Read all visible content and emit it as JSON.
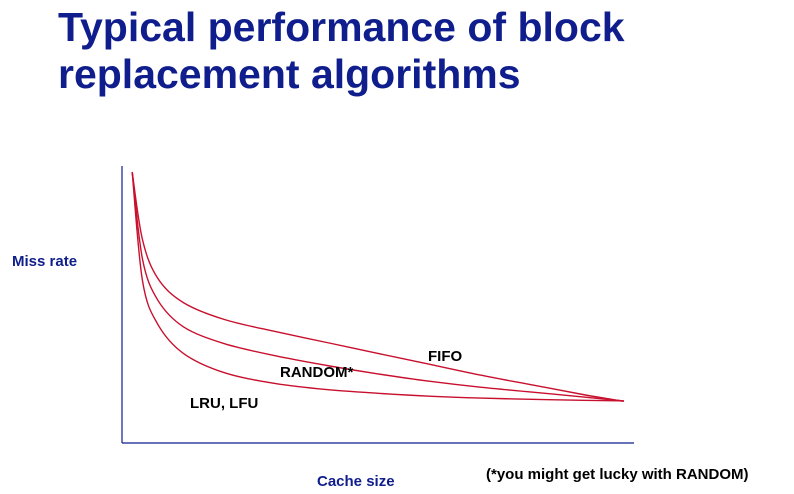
{
  "slide": {
    "title_line1": "Typical performance of block",
    "title_line2": "replacement algorithms",
    "footnote": "(*you might get lucky with RANDOM)"
  },
  "colors": {
    "title": "#0f1e8c",
    "axis": "#0f1e8c",
    "curve": "#c8102e",
    "label": "#000000"
  },
  "chart_data": {
    "type": "line",
    "title": "",
    "xlabel": "Cache size",
    "ylabel": "Miss rate",
    "xticks": [],
    "yticks": [],
    "grid": false,
    "legend": "none",
    "x_domain": [
      0,
      1
    ],
    "y_domain": [
      0,
      1
    ],
    "series": [
      {
        "name": "FIFO",
        "points": [
          [
            0.02,
            1.0
          ],
          [
            0.04,
            0.72
          ],
          [
            0.07,
            0.56
          ],
          [
            0.12,
            0.46
          ],
          [
            0.2,
            0.39
          ],
          [
            0.3,
            0.34
          ],
          [
            0.4,
            0.295
          ],
          [
            0.5,
            0.25
          ],
          [
            0.6,
            0.205
          ],
          [
            0.7,
            0.16
          ],
          [
            0.8,
            0.12
          ],
          [
            0.9,
            0.08
          ],
          [
            0.97,
            0.055
          ],
          [
            0.98,
            0.053
          ]
        ]
      },
      {
        "name": "RANDOM*",
        "points": [
          [
            0.02,
            1.0
          ],
          [
            0.04,
            0.64
          ],
          [
            0.07,
            0.47
          ],
          [
            0.12,
            0.36
          ],
          [
            0.2,
            0.29
          ],
          [
            0.3,
            0.24
          ],
          [
            0.4,
            0.2
          ],
          [
            0.5,
            0.165
          ],
          [
            0.6,
            0.135
          ],
          [
            0.7,
            0.11
          ],
          [
            0.8,
            0.09
          ],
          [
            0.9,
            0.07
          ],
          [
            0.97,
            0.055
          ],
          [
            0.98,
            0.053
          ]
        ]
      },
      {
        "name": "LRU, LFU",
        "points": [
          [
            0.02,
            1.0
          ],
          [
            0.04,
            0.55
          ],
          [
            0.07,
            0.37
          ],
          [
            0.12,
            0.25
          ],
          [
            0.2,
            0.17
          ],
          [
            0.3,
            0.125
          ],
          [
            0.4,
            0.1
          ],
          [
            0.5,
            0.085
          ],
          [
            0.6,
            0.073
          ],
          [
            0.7,
            0.065
          ],
          [
            0.8,
            0.06
          ],
          [
            0.9,
            0.056
          ],
          [
            0.97,
            0.054
          ],
          [
            0.98,
            0.053
          ]
        ]
      }
    ],
    "annotations": [
      {
        "text": "FIFO",
        "x": 0.6,
        "y": 0.29
      },
      {
        "text": "RANDOM*",
        "x": 0.33,
        "y": 0.22
      },
      {
        "text": "LRU, LFU",
        "x": 0.14,
        "y": 0.12
      }
    ]
  }
}
